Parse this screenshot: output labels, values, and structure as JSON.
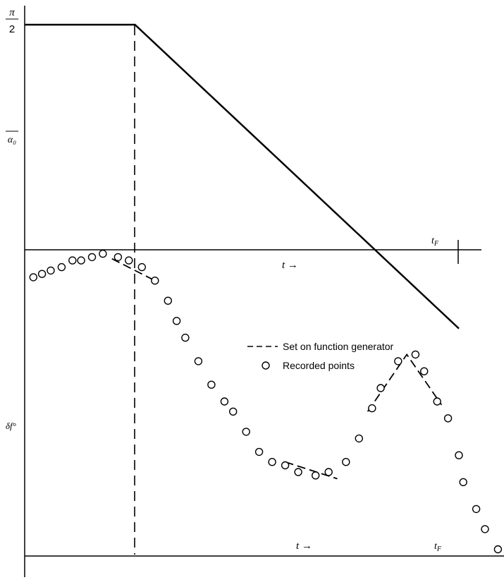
{
  "chart_data": [
    {
      "type": "line",
      "panel": "upper",
      "y_ticks": {
        "top_num": "π",
        "top_den": "2",
        "alpha": "α₀"
      },
      "x_axis_label": "t →",
      "end_label": "t",
      "end_label_sub": "F",
      "line": [
        {
          "t": 0.0,
          "y": 1.0
        },
        {
          "t": 0.254,
          "y": 1.0
        },
        {
          "t": 1.0,
          "y": -0.35
        }
      ],
      "ylim": [
        -0.4,
        1.1
      ],
      "xlim": [
        0.0,
        1.05
      ]
    },
    {
      "type": "scatter",
      "panel": "lower",
      "ylabel": "δf°",
      "x_axis_label": "t →",
      "end_label": "t",
      "end_label_sub": "F",
      "legend": {
        "dashed": "Set on function generator",
        "circles": "Recorded points"
      },
      "set_on_function_generator": [
        [
          [
            0.201,
            0.885
          ],
          [
            0.3,
            0.82
          ]
        ],
        [
          [
            0.6,
            0.28
          ],
          [
            0.72,
            0.23
          ]
        ],
        [
          [
            0.79,
            0.43
          ],
          [
            0.88,
            0.6
          ],
          [
            0.96,
            0.45
          ]
        ]
      ],
      "recorded_points": [
        [
          0.02,
          0.83
        ],
        [
          0.04,
          0.84
        ],
        [
          0.06,
          0.85
        ],
        [
          0.085,
          0.86
        ],
        [
          0.11,
          0.88
        ],
        [
          0.13,
          0.88
        ],
        [
          0.155,
          0.89
        ],
        [
          0.18,
          0.9
        ],
        [
          0.215,
          0.89
        ],
        [
          0.24,
          0.88
        ],
        [
          0.27,
          0.86
        ],
        [
          0.3,
          0.82
        ],
        [
          0.33,
          0.76
        ],
        [
          0.35,
          0.7
        ],
        [
          0.37,
          0.65
        ],
        [
          0.4,
          0.58
        ],
        [
          0.43,
          0.51
        ],
        [
          0.46,
          0.46
        ],
        [
          0.48,
          0.43
        ],
        [
          0.51,
          0.37
        ],
        [
          0.54,
          0.31
        ],
        [
          0.57,
          0.28
        ],
        [
          0.6,
          0.27
        ],
        [
          0.63,
          0.25
        ],
        [
          0.67,
          0.24
        ],
        [
          0.7,
          0.25
        ],
        [
          0.74,
          0.28
        ],
        [
          0.77,
          0.35
        ],
        [
          0.8,
          0.44
        ],
        [
          0.82,
          0.5
        ],
        [
          0.86,
          0.58
        ],
        [
          0.9,
          0.6
        ],
        [
          0.92,
          0.55
        ],
        [
          0.95,
          0.46
        ],
        [
          0.975,
          0.41
        ],
        [
          1.0,
          0.3
        ],
        [
          1.01,
          0.22
        ],
        [
          1.04,
          0.14
        ],
        [
          1.06,
          0.08
        ],
        [
          1.09,
          0.02
        ]
      ],
      "xlim": [
        0.0,
        1.1
      ],
      "ylim": [
        0.0,
        1.0
      ]
    }
  ]
}
